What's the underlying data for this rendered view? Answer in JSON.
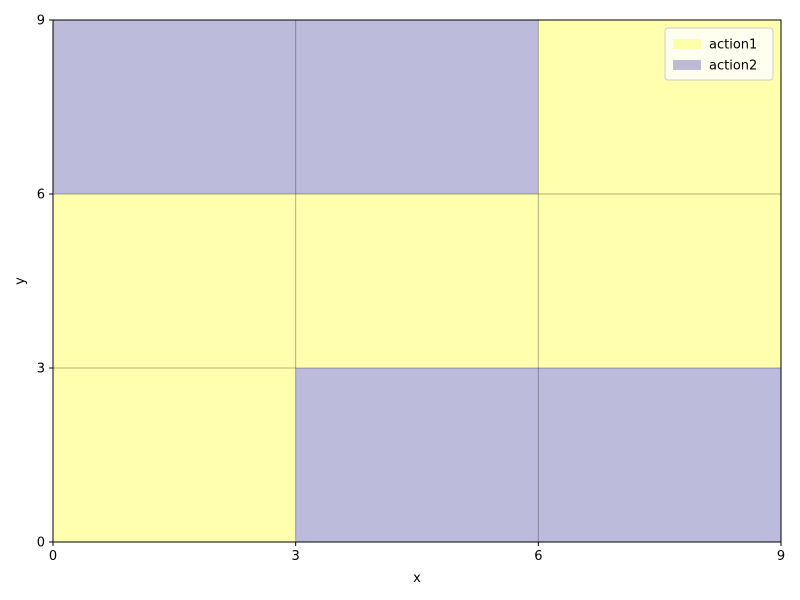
{
  "chart_data": {
    "type": "heatmap",
    "xlabel": "x",
    "ylabel": "y",
    "xlim": [
      0,
      9
    ],
    "ylim": [
      0,
      9
    ],
    "xticks": [
      "0",
      "3",
      "6",
      "9"
    ],
    "yticks": [
      "0",
      "3",
      "6",
      "9"
    ],
    "grid": true,
    "legend_position": "top-right",
    "series": [
      {
        "name": "action1",
        "color": "#ffff99"
      },
      {
        "name": "action2",
        "color": "#8783bd"
      }
    ],
    "cells": [
      {
        "x": [
          0,
          3
        ],
        "y": [
          0,
          3
        ],
        "action": "action1"
      },
      {
        "x": [
          3,
          6
        ],
        "y": [
          0,
          3
        ],
        "action": "action2"
      },
      {
        "x": [
          6,
          9
        ],
        "y": [
          0,
          3
        ],
        "action": "action2"
      },
      {
        "x": [
          0,
          3
        ],
        "y": [
          3,
          6
        ],
        "action": "action1"
      },
      {
        "x": [
          3,
          6
        ],
        "y": [
          3,
          6
        ],
        "action": "action1"
      },
      {
        "x": [
          6,
          9
        ],
        "y": [
          3,
          6
        ],
        "action": "action1"
      },
      {
        "x": [
          0,
          3
        ],
        "y": [
          6,
          9
        ],
        "action": "action2"
      },
      {
        "x": [
          3,
          6
        ],
        "y": [
          6,
          9
        ],
        "action": "action2"
      },
      {
        "x": [
          6,
          9
        ],
        "y": [
          6,
          9
        ],
        "action": "action1"
      }
    ]
  }
}
